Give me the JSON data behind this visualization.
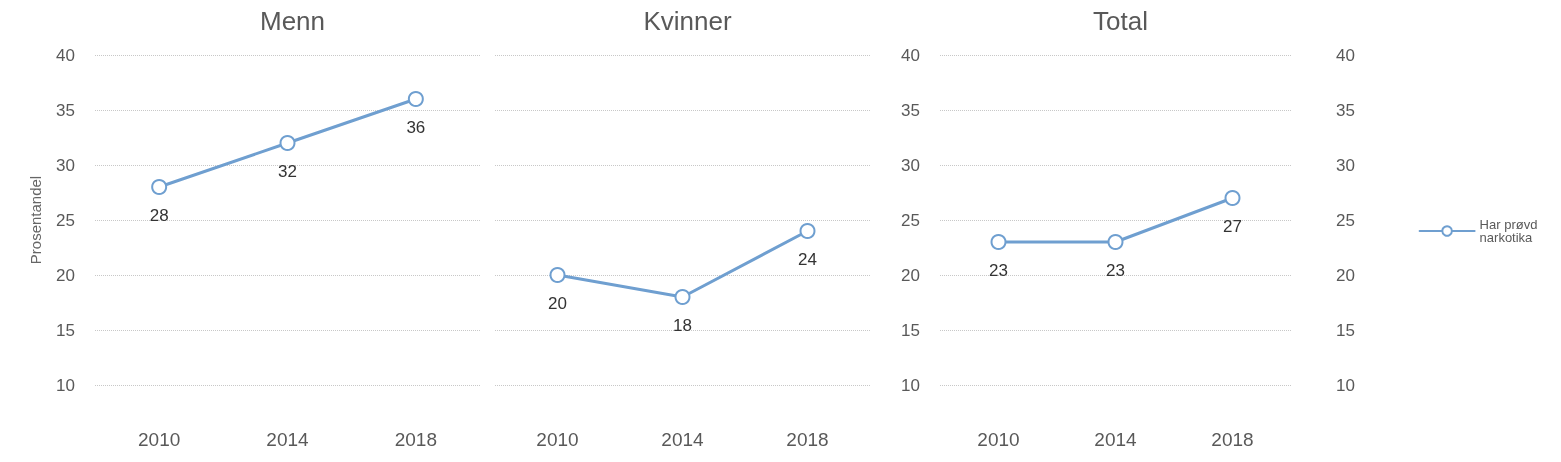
{
  "chart_data": [
    {
      "type": "line",
      "title": "Menn",
      "ylabel": "Prosentandel",
      "categories": [
        "2010",
        "2014",
        "2018"
      ],
      "series": [
        {
          "color": "#6f9fd0",
          "values": [
            28,
            32,
            36
          ]
        }
      ],
      "ylim": [
        10,
        40
      ],
      "yticks": [
        10,
        15,
        20,
        25,
        30,
        35,
        40
      ],
      "grid": "y",
      "marker": "circle",
      "data_labels": true,
      "legend": false
    },
    {
      "type": "line",
      "title": "Kvinner",
      "categories": [
        "2010",
        "2014",
        "2018"
      ],
      "series": [
        {
          "color": "#6f9fd0",
          "values": [
            20,
            18,
            24
          ]
        }
      ],
      "ylim": [
        10,
        40
      ],
      "yticks": [
        10,
        15,
        20,
        25,
        30,
        35,
        40
      ],
      "grid": "y",
      "marker": "circle",
      "data_labels": true,
      "legend": false,
      "tick_labels": "x"
    },
    {
      "type": "line",
      "title": "Total",
      "categories": [
        "2010",
        "2014",
        "2018"
      ],
      "series": [
        {
          "name": "Har prøvd narkotika",
          "color": "#6f9fd0",
          "values": [
            23,
            23,
            27
          ]
        }
      ],
      "ylim": [
        10,
        40
      ],
      "yticks": [
        10,
        15,
        20,
        25,
        30,
        35,
        40
      ],
      "y2lim": [
        10,
        40
      ],
      "y2ticks": [
        10,
        15,
        20,
        25,
        30,
        35,
        40
      ],
      "grid": "y",
      "marker": "circle",
      "data_labels": true,
      "legend": "right"
    }
  ]
}
